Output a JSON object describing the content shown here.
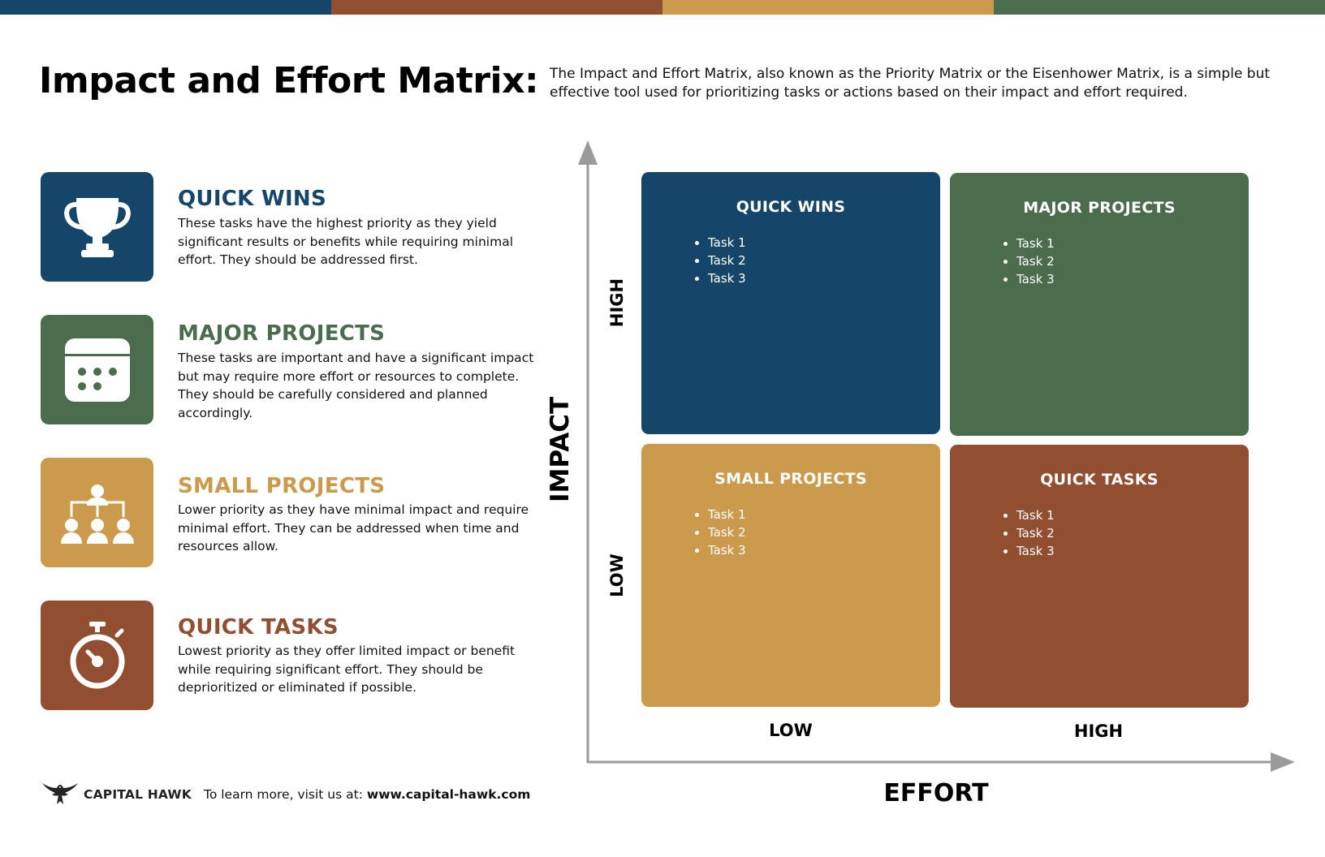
{
  "colors": {
    "navy": "#16456a",
    "rust": "#924e30",
    "mustard": "#cc9a4c",
    "green": "#4b6d4e"
  },
  "title": "Impact and Effort Matrix:",
  "description": "The Impact and Effort Matrix, also known as the Priority Matrix or the Eisenhower Matrix, is a simple but effective tool used for prioritizing tasks or actions based on their impact and effort required.",
  "categories": [
    {
      "title": "QUICK WINS",
      "icon": "trophy-icon",
      "color": "#16456a",
      "text": "These tasks have the highest priority as they yield significant results or benefits while requiring minimal effort. They should be addressed first."
    },
    {
      "title": "MAJOR PROJECTS",
      "icon": "calendar-icon",
      "color": "#4b6d4e",
      "text": "These tasks are important and have a significant impact but may require more effort or resources to complete. They should be carefully considered and planned accordingly."
    },
    {
      "title": "SMALL PROJECTS",
      "icon": "team-icon",
      "color": "#cc9a4c",
      "text": "Lower priority as they have minimal impact and require minimal effort. They can be addressed when time and resources allow."
    },
    {
      "title": "QUICK TASKS",
      "icon": "stopwatch-icon",
      "color": "#924e30",
      "text": "Lowest priority as they offer limited impact or benefit while requiring significant effort. They should be deprioritized or eliminated if possible."
    }
  ],
  "matrix": {
    "y_axis": {
      "label": "IMPACT",
      "high": "HIGH",
      "low": "LOW"
    },
    "x_axis": {
      "label": "EFFORT",
      "low": "LOW",
      "high": "HIGH"
    },
    "quadrants": [
      {
        "title": "QUICK WINS",
        "tasks": [
          "Task 1",
          "Task 2",
          "Task 3"
        ]
      },
      {
        "title": "MAJOR PROJECTS",
        "tasks": [
          "Task 1",
          "Task 2",
          "Task 3"
        ]
      },
      {
        "title": "SMALL PROJECTS",
        "tasks": [
          "Task 1",
          "Task 2",
          "Task 3"
        ]
      },
      {
        "title": "QUICK TASKS",
        "tasks": [
          "Task 1",
          "Task 2",
          "Task 3"
        ]
      }
    ]
  },
  "footer": {
    "brand": "CAPITAL HAWK",
    "logo_icon": "hawk-logo-icon",
    "text": "To learn more, visit us at:",
    "url": "www.capital-hawk.com"
  }
}
